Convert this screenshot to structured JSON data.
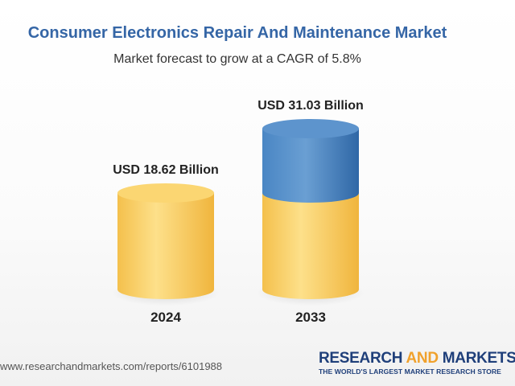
{
  "header": {
    "title": "Consumer Electronics Repair And Maintenance Market",
    "subtitle": "Market forecast to grow at a CAGR of 5.8%"
  },
  "footer": {
    "url": "www.researchandmarkets.com/reports/6101988",
    "brand_part1": "RESEARCH ",
    "brand_part2": "AND",
    "brand_part3": " MARKETS",
    "tagline": "THE WORLD'S LARGEST MARKET RESEARCH STORE"
  },
  "colors": {
    "base": "#f7c95a",
    "growth": "#3f78b4",
    "title": "#3566a6",
    "brand": "#1f3f7a",
    "brand_accent": "#f0a12c"
  },
  "chart_data": {
    "type": "bar",
    "categories": [
      "2024",
      "2033"
    ],
    "values": [
      18.62,
      31.03
    ],
    "value_labels": [
      "USD 18.62 Billion",
      "USD 31.03 Billion"
    ],
    "unit": "USD Billion",
    "ylim": [
      0,
      31.03
    ],
    "grid": false,
    "legend": "none"
  }
}
